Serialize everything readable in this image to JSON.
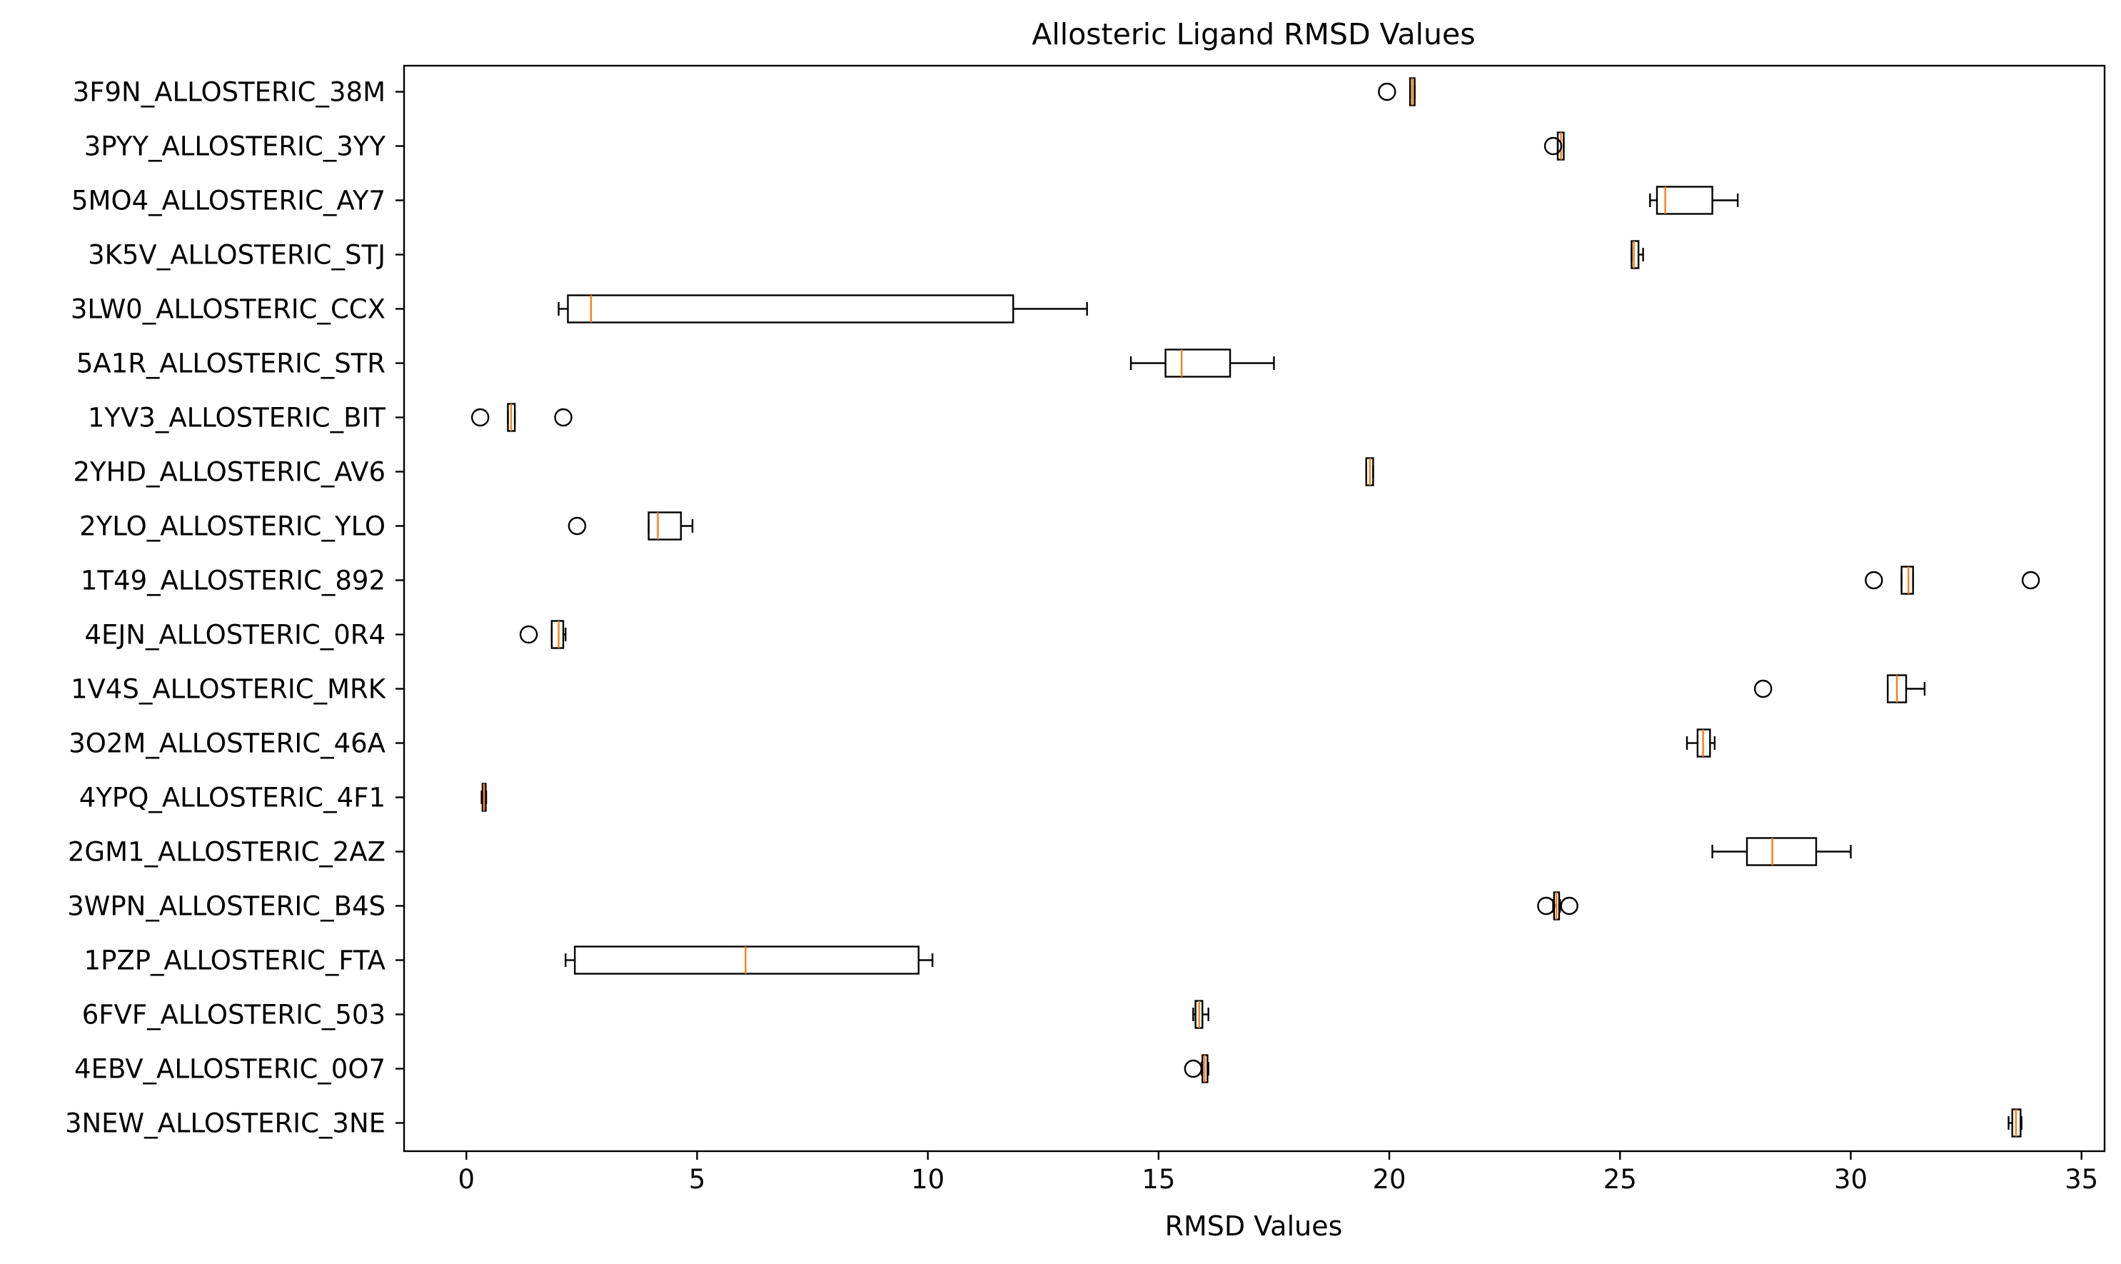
{
  "chart_data": {
    "type": "boxplot",
    "orientation": "horizontal",
    "title": "Allosteric Ligand RMSD Values",
    "xlabel": "RMSD Values",
    "ylabel": "",
    "xlim": [
      -1.35,
      35.5
    ],
    "xticks": [
      0,
      5,
      10,
      15,
      20,
      25,
      30,
      35
    ],
    "grid": false,
    "colors": {
      "box": "#000000",
      "median": "#ff7f0e",
      "background": "#ffffff"
    },
    "series": [
      {
        "label": "3NEW_ALLOSTERIC_3NE",
        "whislo": 33.42,
        "q1": 33.5,
        "med": 33.58,
        "q3": 33.68,
        "whishi": 33.7,
        "fliers": []
      },
      {
        "label": "4EBV_ALLOSTERIC_0O7",
        "whislo": 15.93,
        "q1": 15.95,
        "med": 16.0,
        "q3": 16.06,
        "whishi": 16.08,
        "fliers": [
          15.75
        ]
      },
      {
        "label": "6FVF_ALLOSTERIC_503",
        "whislo": 15.75,
        "q1": 15.8,
        "med": 15.88,
        "q3": 15.95,
        "whishi": 16.08,
        "fliers": []
      },
      {
        "label": "1PZP_ALLOSTERIC_FTA",
        "whislo": 2.15,
        "q1": 2.35,
        "med": 6.05,
        "q3": 9.8,
        "whishi": 10.1,
        "fliers": []
      },
      {
        "label": "3WPN_ALLOSTERIC_B4S",
        "whislo": 23.55,
        "q1": 23.57,
        "med": 23.62,
        "q3": 23.68,
        "whishi": 23.7,
        "fliers": [
          23.4,
          23.9
        ]
      },
      {
        "label": "2GM1_ALLOSTERIC_2AZ",
        "whislo": 27.0,
        "q1": 27.75,
        "med": 28.3,
        "q3": 29.25,
        "whishi": 30.0,
        "fliers": []
      },
      {
        "label": "4YPQ_ALLOSTERIC_4F1",
        "whislo": 0.33,
        "q1": 0.35,
        "med": 0.38,
        "q3": 0.42,
        "whishi": 0.43,
        "fliers": []
      },
      {
        "label": "3O2M_ALLOSTERIC_46A",
        "whislo": 26.45,
        "q1": 26.68,
        "med": 26.8,
        "q3": 26.95,
        "whishi": 27.05,
        "fliers": []
      },
      {
        "label": "1V4S_ALLOSTERIC_MRK",
        "whislo": 30.8,
        "q1": 30.8,
        "med": 31.0,
        "q3": 31.2,
        "whishi": 31.6,
        "fliers": [
          28.1
        ]
      },
      {
        "label": "4EJN_ALLOSTERIC_0R4",
        "whislo": 1.85,
        "q1": 1.85,
        "med": 2.0,
        "q3": 2.1,
        "whishi": 2.15,
        "fliers": [
          1.35
        ]
      },
      {
        "label": "1T49_ALLOSTERIC_892",
        "whislo": 31.1,
        "q1": 31.1,
        "med": 31.25,
        "q3": 31.35,
        "whishi": 31.35,
        "fliers": [
          30.5,
          33.9
        ]
      },
      {
        "label": "2YLO_ALLOSTERIC_YLO",
        "whislo": 3.95,
        "q1": 3.95,
        "med": 4.15,
        "q3": 4.65,
        "whishi": 4.9,
        "fliers": [
          2.4
        ]
      },
      {
        "label": "2YHD_ALLOSTERIC_AV6",
        "whislo": 19.5,
        "q1": 19.5,
        "med": 19.58,
        "q3": 19.65,
        "whishi": 19.65,
        "fliers": []
      },
      {
        "label": "1YV3_ALLOSTERIC_BIT",
        "whislo": 0.9,
        "q1": 0.9,
        "med": 0.97,
        "q3": 1.05,
        "whishi": 1.05,
        "fliers": [
          0.3,
          2.1
        ]
      },
      {
        "label": "5A1R_ALLOSTERIC_STR",
        "whislo": 14.4,
        "q1": 15.15,
        "med": 15.5,
        "q3": 16.55,
        "whishi": 17.5,
        "fliers": []
      },
      {
        "label": "3LW0_ALLOSTERIC_CCX",
        "whislo": 2.0,
        "q1": 2.2,
        "med": 2.7,
        "q3": 11.85,
        "whishi": 13.45,
        "fliers": []
      },
      {
        "label": "3K5V_ALLOSTERIC_STJ",
        "whislo": 25.25,
        "q1": 25.25,
        "med": 25.3,
        "q3": 25.4,
        "whishi": 25.5,
        "fliers": []
      },
      {
        "label": "5MO4_ALLOSTERIC_AY7",
        "whislo": 25.65,
        "q1": 25.8,
        "med": 25.98,
        "q3": 27.0,
        "whishi": 27.55,
        "fliers": []
      },
      {
        "label": "3PYY_ALLOSTERIC_3YY",
        "whislo": 23.65,
        "q1": 23.65,
        "med": 23.72,
        "q3": 23.78,
        "whishi": 23.78,
        "fliers": [
          23.55
        ]
      },
      {
        "label": "3F9N_ALLOSTERIC_38M",
        "whislo": 20.45,
        "q1": 20.45,
        "med": 20.5,
        "q3": 20.55,
        "whishi": 20.55,
        "fliers": [
          19.95
        ]
      }
    ]
  }
}
